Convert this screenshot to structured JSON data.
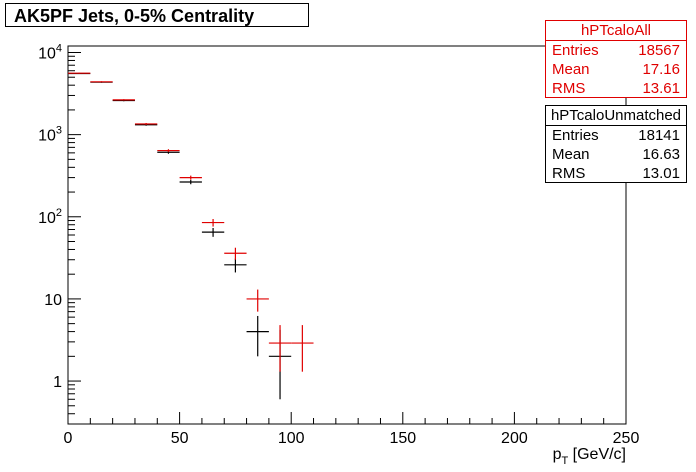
{
  "chart_data": {
    "type": "scatter",
    "title": "AK5PF Jets, 0-5% Centrality",
    "xlabel": "p_T [GeV/c]",
    "ylabel": "",
    "xlim": [
      0,
      250
    ],
    "ylim": [
      0.3,
      12000
    ],
    "yscale": "log",
    "xticks": [
      0,
      50,
      100,
      150,
      200,
      250
    ],
    "yticks": [
      1,
      10,
      100,
      1000,
      10000
    ],
    "ytick_labels": [
      "1",
      "10",
      "10^2",
      "10^3",
      "10^4"
    ],
    "bin_width": 10,
    "series": [
      {
        "name": "hPTcaloAll",
        "color": "#e00000",
        "x": [
          5,
          15,
          25,
          35,
          45,
          55,
          65,
          75,
          85,
          95,
          105
        ],
        "y": [
          5600,
          4400,
          2650,
          1350,
          640,
          300,
          85,
          36,
          10,
          2.9,
          2.9
        ],
        "yerr_low": [
          75,
          66,
          51,
          37,
          25,
          17,
          9,
          6,
          3,
          1.6,
          1.6
        ],
        "yerr_high": [
          75,
          66,
          51,
          37,
          25,
          17,
          9,
          6,
          3,
          1.9,
          1.9
        ],
        "stats": {
          "title": "hPTcaloAll",
          "entries_label": "Entries",
          "entries": "18567",
          "mean_label": "Mean",
          "mean": "17.16",
          "rms_label": "RMS",
          "rms": "13.61"
        }
      },
      {
        "name": "hPTcaloUnmatched",
        "color": "#000000",
        "x": [
          5,
          15,
          25,
          35,
          45,
          55,
          65,
          75,
          85,
          95
        ],
        "y": [
          5550,
          4350,
          2600,
          1320,
          610,
          265,
          65,
          26,
          4,
          2
        ],
        "yerr_low": [
          75,
          66,
          51,
          36,
          25,
          16,
          8,
          5,
          2,
          1.4
        ],
        "yerr_high": [
          75,
          66,
          51,
          36,
          25,
          16,
          8,
          5,
          2.2,
          2.2
        ],
        "stats": {
          "title": "hPTcaloUnmatched",
          "entries_label": "Entries",
          "entries": "18141",
          "mean_label": "Mean",
          "mean": "16.63",
          "rms_label": "RMS",
          "rms": "13.01"
        }
      }
    ]
  }
}
